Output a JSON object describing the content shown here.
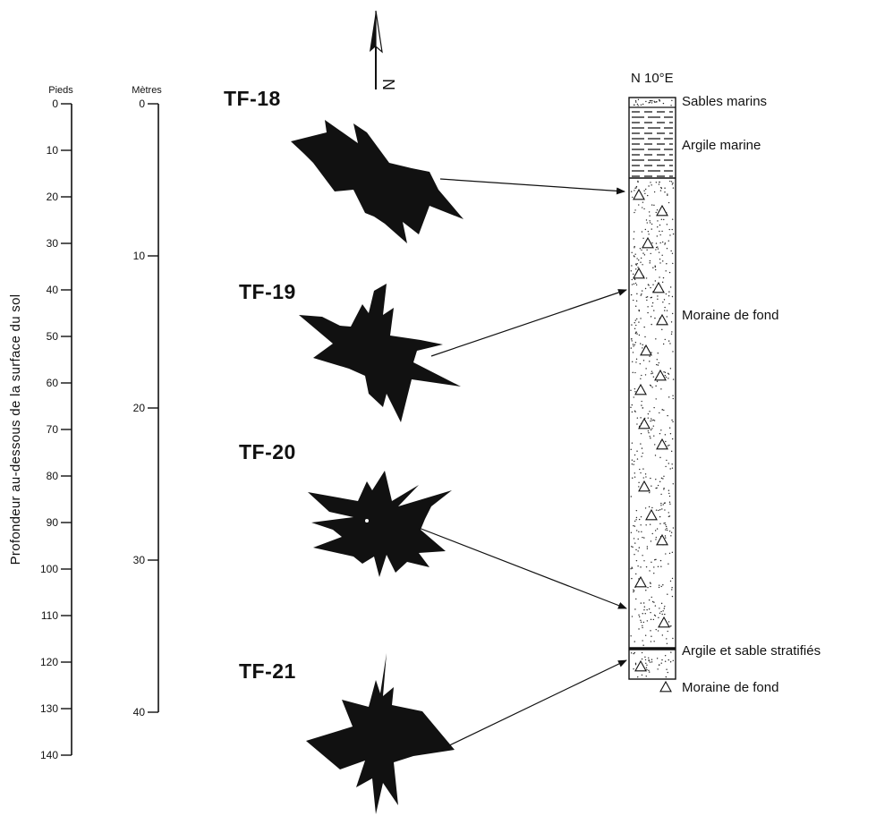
{
  "north_arrow": {
    "letter": "N"
  },
  "depth_scales": {
    "axis_title": "Profondeur au-dessous de la surface du sol",
    "feet": {
      "unit": "Pieds",
      "ticks": [
        "0",
        "10",
        "20",
        "30",
        "40",
        "50",
        "60",
        "70",
        "80",
        "90",
        "100",
        "110",
        "120",
        "130",
        "140"
      ]
    },
    "metres": {
      "unit": "Mètres",
      "ticks": [
        "0",
        "10",
        "20",
        "30",
        "40"
      ]
    }
  },
  "fabric_samples": [
    {
      "id": "TF-18",
      "target_depth_m": 6
    },
    {
      "id": "TF-19",
      "target_depth_m": 12
    },
    {
      "id": "TF-20",
      "target_depth_m": 33
    },
    {
      "id": "TF-21",
      "target_depth_m": 37.5
    }
  ],
  "section": {
    "orientation": "N 10°E",
    "layers": [
      {
        "label": "Sables marins",
        "pattern": "dotted"
      },
      {
        "label": "Argile marine",
        "pattern": "dashed"
      },
      {
        "label": "Moraine de fond",
        "pattern": "till"
      },
      {
        "label": "Argile et sable stratifiés",
        "pattern": "contact-line"
      },
      {
        "label": "Moraine de fond",
        "pattern": "till"
      }
    ]
  },
  "colors": {
    "ink": "#111111",
    "paper": "#ffffff"
  }
}
